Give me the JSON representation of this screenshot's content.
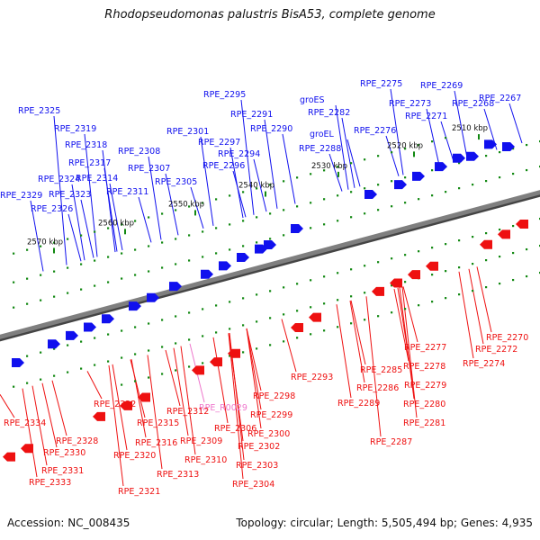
{
  "title": "Rhodopseudomonas palustris BisA53, complete genome",
  "footer": {
    "accession": "Accession: NC_008435",
    "summary": "Topology: circular; Length: 5,505,494 bp; Genes: 4,935"
  },
  "colors": {
    "forward": "#1010ee",
    "reverse": "#ee1010",
    "rna": "#ee77cc",
    "backbone": "#7f7f7f",
    "tick": "#118811"
  },
  "ruler": [
    "2510 kbp",
    "2520 kbp",
    "2530 kbp",
    "2540 kbp",
    "2550 kbp",
    "2560 kbp",
    "2570 kbp"
  ],
  "top_labels": [
    "RPE_2267",
    "RPE_2268",
    "RPE_2269",
    "RPE_2271",
    "RPE_2273",
    "RPE_2275",
    "RPE_2276",
    "RPE_2282",
    "groES",
    "groEL",
    "RPE_2288",
    "RPE_2290",
    "RPE_2291",
    "RPE_2294",
    "RPE_2295",
    "RPE_2296",
    "RPE_2297",
    "RPE_2301",
    "RPE_2305",
    "RPE_2307",
    "RPE_2308",
    "RPE_2311",
    "RPE_2314",
    "RPE_2317",
    "RPE_2318",
    "RPE_2319",
    "RPE_2323",
    "RPE_2324",
    "RPE_2325",
    "RPE_2326",
    "RPE_2329"
  ],
  "bottom_labels": [
    "RPE_2270",
    "RPE_2272",
    "RPE_2274",
    "RPE_2277",
    "RPE_2278",
    "RPE_2279",
    "RPE_2280",
    "RPE_2281",
    "RPE_2285",
    "RPE_2286",
    "RPE_2287",
    "RPE_2289",
    "RPE_2293",
    "RPE_2298",
    "RPE_2299",
    "RPE_2300",
    "RPE_2302",
    "RPE_2303",
    "RPE_2304",
    "RPE_2306",
    "RPE_R0029",
    "RPE_2309",
    "RPE_2310",
    "RPE_2312",
    "RPE_2313",
    "RPE_2315",
    "RPE_2316",
    "RPE_2320",
    "RPE_2321",
    "RPE_2322",
    "RPE_2328",
    "RPE_2330",
    "RPE_2331",
    "RPE_2333",
    "RPE_2334"
  ]
}
